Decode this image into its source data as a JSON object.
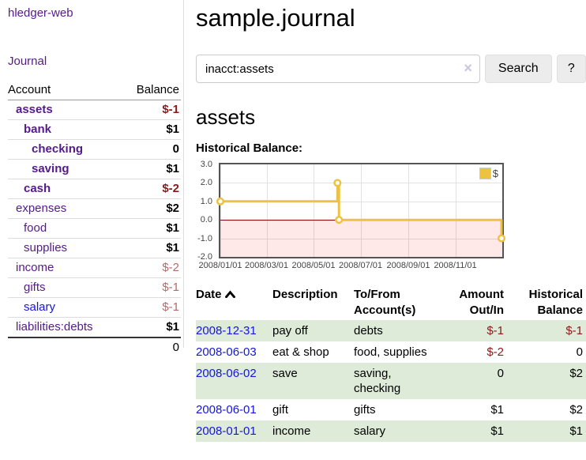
{
  "colors": {
    "link_purple": "#551a8b",
    "link_blue": "#1414e0",
    "negative": "#8b1a1a",
    "negative_muted": "#b36a6a",
    "row_stripe_green": "#deebd8",
    "series_yellow": "#edc240",
    "zero_line_red": "#8b0000",
    "chart_negative_region": "rgba(255,0,0,0.09)"
  },
  "sidebar": {
    "app_title": "hledger-web",
    "nav": {
      "journal_label": "Journal"
    },
    "accounts_table": {
      "headers": {
        "account": "Account",
        "balance": "Balance"
      },
      "rows": [
        {
          "name": "assets",
          "depth": 1,
          "bold": true,
          "balance": "$-1",
          "amount_style": "negative",
          "link_style": "purple"
        },
        {
          "name": "bank",
          "depth": 2,
          "bold": true,
          "balance": "$1",
          "amount_style": "normal",
          "link_style": "purple"
        },
        {
          "name": "checking",
          "depth": 3,
          "bold": true,
          "balance": "0",
          "amount_style": "normal",
          "link_style": "purple"
        },
        {
          "name": "saving",
          "depth": 3,
          "bold": true,
          "balance": "$1",
          "amount_style": "normal",
          "link_style": "purple"
        },
        {
          "name": "cash",
          "depth": 2,
          "bold": true,
          "balance": "$-2",
          "amount_style": "negative",
          "link_style": "purple"
        },
        {
          "name": "expenses",
          "depth": 1,
          "bold": false,
          "balance": "$2",
          "amount_style": "normal",
          "link_style": "purple"
        },
        {
          "name": "food",
          "depth": 2,
          "bold": false,
          "balance": "$1",
          "amount_style": "normal",
          "link_style": "purple"
        },
        {
          "name": "supplies",
          "depth": 2,
          "bold": false,
          "balance": "$1",
          "amount_style": "normal",
          "link_style": "purple"
        },
        {
          "name": "income",
          "depth": 1,
          "bold": false,
          "balance": "$-2",
          "amount_style": "negative-muted",
          "link_style": "purple"
        },
        {
          "name": "gifts",
          "depth": 2,
          "bold": false,
          "balance": "$-1",
          "amount_style": "negative-muted",
          "link_style": "purple"
        },
        {
          "name": "salary",
          "depth": 2,
          "bold": false,
          "balance": "$-1",
          "amount_style": "negative-muted",
          "link_style": "blue"
        },
        {
          "name": "liabilities:debts",
          "depth": 1,
          "bold": false,
          "balance": "$1",
          "amount_style": "normal",
          "link_style": "purple"
        }
      ],
      "total": "0"
    }
  },
  "header": {
    "title": "sample.journal"
  },
  "search": {
    "value": "inacct:assets",
    "clear_icon": "×",
    "search_button": "Search",
    "help_button": "?"
  },
  "main": {
    "account_heading": "assets"
  },
  "chart_data": {
    "type": "line",
    "step": true,
    "title": "Historical Balance:",
    "series": [
      {
        "name": "$",
        "color": "#edc240",
        "points": [
          {
            "date": "2008-01-01",
            "value": 1
          },
          {
            "date": "2008-06-01",
            "value": 2
          },
          {
            "date": "2008-06-03",
            "value": 0
          },
          {
            "date": "2008-12-31",
            "value": -1
          }
        ]
      }
    ],
    "x_range": [
      "2008-01-01",
      "2009-01-01"
    ],
    "ylim": [
      -2,
      3
    ],
    "yticks": [
      {
        "value": 3,
        "label": "3.0"
      },
      {
        "value": 2,
        "label": "2.0"
      },
      {
        "value": 1,
        "label": "1.0"
      },
      {
        "value": 0,
        "label": "0.0"
      },
      {
        "value": -1,
        "label": "-1.0"
      },
      {
        "value": -2,
        "label": "-2.0"
      }
    ],
    "xticks": [
      {
        "date": "2008-01-01",
        "label": "2008/01/01"
      },
      {
        "date": "2008-03-01",
        "label": "2008/03/01"
      },
      {
        "date": "2008-05-01",
        "label": "2008/05/01"
      },
      {
        "date": "2008-07-01",
        "label": "2008/07/01"
      },
      {
        "date": "2008-09-01",
        "label": "2008/09/01"
      },
      {
        "date": "2008-11-01",
        "label": "2008/11/01"
      }
    ],
    "legend": {
      "position": "top-right",
      "entries": [
        "$"
      ]
    },
    "grid": true,
    "negative_region_highlighted": true
  },
  "register": {
    "headers": {
      "date": "Date",
      "description": "Description",
      "accounts": "To/From\nAccount(s)",
      "amount": "Amount\nOut/In",
      "balance": "Historical\nBalance"
    },
    "rows": [
      {
        "date": "2008-12-31",
        "description": "pay off",
        "accounts": "debts",
        "amount": "$-1",
        "amount_style": "negative",
        "balance": "$-1",
        "balance_style": "negative"
      },
      {
        "date": "2008-06-03",
        "description": "eat & shop",
        "accounts": "food, supplies",
        "amount": "$-2",
        "amount_style": "negative",
        "balance": "0",
        "balance_style": "normal"
      },
      {
        "date": "2008-06-02",
        "description": "save",
        "accounts": "saving, checking",
        "amount": "0",
        "amount_style": "normal",
        "balance": "$2",
        "balance_style": "normal"
      },
      {
        "date": "2008-06-01",
        "description": "gift",
        "accounts": "gifts",
        "amount": "$1",
        "amount_style": "normal",
        "balance": "$2",
        "balance_style": "normal"
      },
      {
        "date": "2008-01-01",
        "description": "income",
        "accounts": "salary",
        "amount": "$1",
        "amount_style": "normal",
        "balance": "$1",
        "balance_style": "normal"
      }
    ]
  }
}
